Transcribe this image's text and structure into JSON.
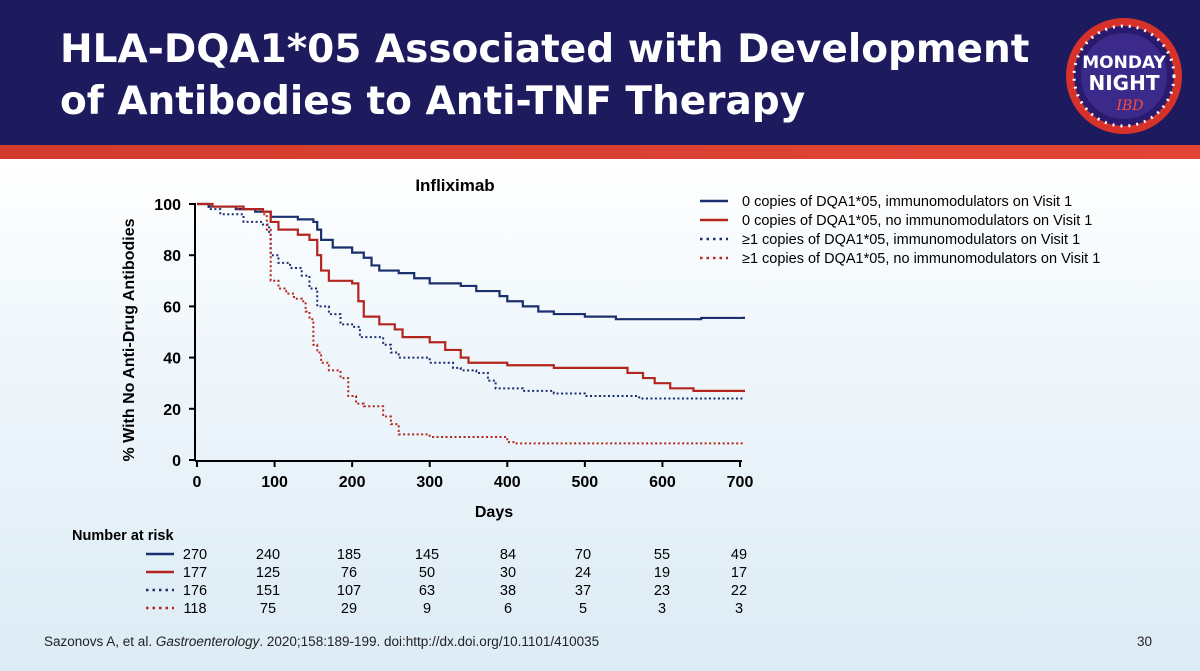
{
  "slide": {
    "title": "HLA-DQA1*05 Associated with Development of Antibodies to Anti-TNF Therapy",
    "logo_line1": "MONDAY",
    "logo_line2": "NIGHT",
    "logo_line3": "IBD",
    "citation_authors": "Sazonovs A, et al. ",
    "citation_journal": "Gastroenterology",
    "citation_rest": ". 2020;158:189-199. doi:http://dx.doi.org/10.1101/410035",
    "page_number": "30"
  },
  "colors": {
    "header_bg": "#1d1a5e",
    "accent_red": "#d23b2c",
    "navy_series": "#1b2f6e",
    "red_series": "#b3261e"
  },
  "chart_data": {
    "type": "line",
    "subtype": "kaplan-meier",
    "title": "Infliximab",
    "xlabel": "Days",
    "ylabel": "% With No Anti-Drug Antibodies",
    "xlim": [
      0,
      700
    ],
    "ylim": [
      0,
      100
    ],
    "xticks": [
      0,
      100,
      200,
      300,
      400,
      500,
      600,
      700
    ],
    "yticks": [
      0,
      20,
      40,
      60,
      80,
      100
    ],
    "grid": false,
    "legend_position": "top-right",
    "series": [
      {
        "name": "0 copies of DQA1*05, immunomodulators on Visit 1",
        "color": "#1b2f6e",
        "dash": "solid",
        "points": [
          [
            0,
            100
          ],
          [
            15,
            99
          ],
          [
            50,
            98
          ],
          [
            75,
            97
          ],
          [
            95,
            95
          ],
          [
            130,
            94
          ],
          [
            150,
            93
          ],
          [
            155,
            90
          ],
          [
            160,
            86
          ],
          [
            175,
            83
          ],
          [
            200,
            81
          ],
          [
            215,
            79
          ],
          [
            225,
            76
          ],
          [
            235,
            74
          ],
          [
            260,
            73
          ],
          [
            280,
            71
          ],
          [
            300,
            69
          ],
          [
            340,
            68
          ],
          [
            360,
            66
          ],
          [
            390,
            64
          ],
          [
            400,
            62
          ],
          [
            420,
            60
          ],
          [
            440,
            58
          ],
          [
            460,
            57
          ],
          [
            500,
            56
          ],
          [
            540,
            55
          ],
          [
            600,
            55
          ],
          [
            650,
            55.5
          ],
          [
            705,
            56
          ]
        ]
      },
      {
        "name": "0 copies of DQA1*05, no immunomodulators on Visit 1",
        "color": "#b3261e",
        "dash": "solid",
        "points": [
          [
            0,
            100
          ],
          [
            20,
            99
          ],
          [
            60,
            98
          ],
          [
            85,
            97
          ],
          [
            95,
            93
          ],
          [
            105,
            90
          ],
          [
            130,
            88
          ],
          [
            145,
            86
          ],
          [
            155,
            80
          ],
          [
            160,
            74
          ],
          [
            170,
            70
          ],
          [
            200,
            69
          ],
          [
            208,
            62
          ],
          [
            215,
            56
          ],
          [
            235,
            53
          ],
          [
            255,
            51
          ],
          [
            265,
            48
          ],
          [
            300,
            46
          ],
          [
            320,
            43
          ],
          [
            340,
            40
          ],
          [
            350,
            38
          ],
          [
            400,
            37
          ],
          [
            460,
            36
          ],
          [
            530,
            36
          ],
          [
            555,
            34
          ],
          [
            575,
            32
          ],
          [
            590,
            30
          ],
          [
            610,
            28
          ],
          [
            640,
            27
          ],
          [
            705,
            26.5
          ]
        ]
      },
      {
        "name": "≥1 copies of DQA1*05, immunomodulators on Visit 1",
        "color": "#1b2f6e",
        "dash": "dotted",
        "points": [
          [
            0,
            100
          ],
          [
            15,
            98
          ],
          [
            30,
            96
          ],
          [
            60,
            93
          ],
          [
            85,
            92
          ],
          [
            93,
            88
          ],
          [
            95,
            80
          ],
          [
            105,
            77
          ],
          [
            120,
            75
          ],
          [
            135,
            72
          ],
          [
            145,
            67
          ],
          [
            155,
            60
          ],
          [
            170,
            57
          ],
          [
            185,
            53
          ],
          [
            200,
            52
          ],
          [
            210,
            48
          ],
          [
            240,
            45
          ],
          [
            250,
            42
          ],
          [
            260,
            40
          ],
          [
            300,
            38
          ],
          [
            330,
            36
          ],
          [
            340,
            35
          ],
          [
            360,
            34
          ],
          [
            375,
            31
          ],
          [
            385,
            28
          ],
          [
            420,
            27
          ],
          [
            460,
            26
          ],
          [
            500,
            25
          ],
          [
            540,
            25
          ],
          [
            570,
            24
          ],
          [
            705,
            24
          ]
        ]
      },
      {
        "name": "≥1 copies of DQA1*05, no immunomodulators on Visit 1",
        "color": "#b3261e",
        "dash": "dotted",
        "points": [
          [
            0,
            100
          ],
          [
            20,
            99
          ],
          [
            50,
            98
          ],
          [
            85,
            96
          ],
          [
            90,
            90
          ],
          [
            95,
            70
          ],
          [
            105,
            67
          ],
          [
            115,
            65
          ],
          [
            125,
            63
          ],
          [
            135,
            62
          ],
          [
            140,
            58
          ],
          [
            145,
            55
          ],
          [
            150,
            45
          ],
          [
            155,
            42
          ],
          [
            160,
            38
          ],
          [
            170,
            35
          ],
          [
            185,
            32
          ],
          [
            195,
            25
          ],
          [
            205,
            22
          ],
          [
            215,
            21
          ],
          [
            240,
            17
          ],
          [
            250,
            14
          ],
          [
            260,
            10
          ],
          [
            290,
            10
          ],
          [
            300,
            9
          ],
          [
            390,
            9
          ],
          [
            400,
            7
          ],
          [
            410,
            6.5
          ],
          [
            705,
            6.5
          ]
        ]
      }
    ],
    "risk_table": {
      "title": "Number at risk",
      "timepoints": [
        0,
        100,
        200,
        300,
        400,
        500,
        600,
        700
      ],
      "rows": [
        [
          270,
          240,
          185,
          145,
          84,
          70,
          55,
          49
        ],
        [
          177,
          125,
          76,
          50,
          30,
          24,
          19,
          17
        ],
        [
          176,
          151,
          107,
          63,
          38,
          37,
          23,
          22
        ],
        [
          118,
          75,
          29,
          9,
          6,
          5,
          3,
          3
        ]
      ]
    }
  }
}
